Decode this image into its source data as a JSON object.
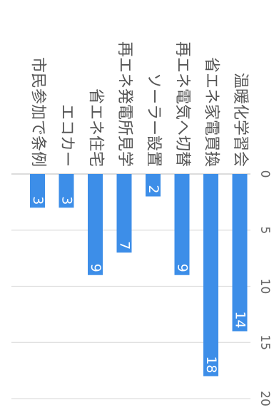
{
  "chart_data": {
    "type": "bar",
    "orientation": "horizontal",
    "rotation": "90deg clockwise",
    "categories": [
      "温暖化学習会",
      "省エネ家電買換",
      "再エネ電気へ切替",
      "ソーラー設置",
      "再エネ発電所見学",
      "省エネ住宅",
      "エコカー",
      "市民参加で条例"
    ],
    "values": [
      14,
      18,
      9,
      2,
      7,
      9,
      3,
      3
    ],
    "xlim": [
      0,
      20
    ],
    "ticks": [
      0,
      5,
      10,
      15,
      20
    ],
    "grid": true,
    "bar_color": "#3d8ee8",
    "data_labels": true
  }
}
